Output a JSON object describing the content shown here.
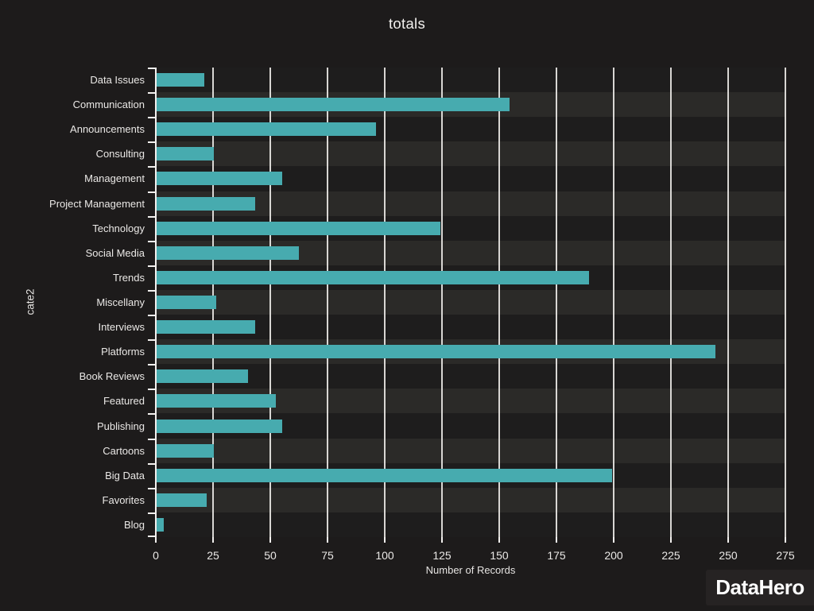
{
  "page": {
    "title": "totals"
  },
  "branding": {
    "logo_text": "DataHero"
  },
  "chart_data": {
    "type": "bar",
    "orientation": "horizontal",
    "title": "totals",
    "xlabel": "Number of Records",
    "ylabel": "cate2",
    "categories": [
      "Data Issues",
      "Communication",
      "Announcements",
      "Consulting",
      "Management",
      "Project Management",
      "Technology",
      "Social Media",
      "Trends",
      "Miscellany",
      "Interviews",
      "Platforms",
      "Book Reviews",
      "Featured",
      "Publishing",
      "Cartoons",
      "Big Data",
      "Favorites",
      "Blog"
    ],
    "values": [
      21,
      154,
      96,
      25,
      55,
      43,
      124,
      62,
      189,
      26,
      43,
      244,
      40,
      52,
      55,
      25,
      199,
      22,
      3
    ],
    "xlim": [
      0,
      275
    ],
    "xticks": [
      0,
      25,
      50,
      75,
      100,
      125,
      150,
      175,
      200,
      225,
      250,
      275
    ],
    "grid": true,
    "legend": false,
    "colors": {
      "bar": "#47abaf",
      "background": "#1d1b1b",
      "stripe_dark": "#1e1d1d",
      "stripe_light": "#2b2a28",
      "gridline": "#e8e6e3",
      "axis": "#f2f0ee",
      "text": "#eae8e6"
    }
  }
}
